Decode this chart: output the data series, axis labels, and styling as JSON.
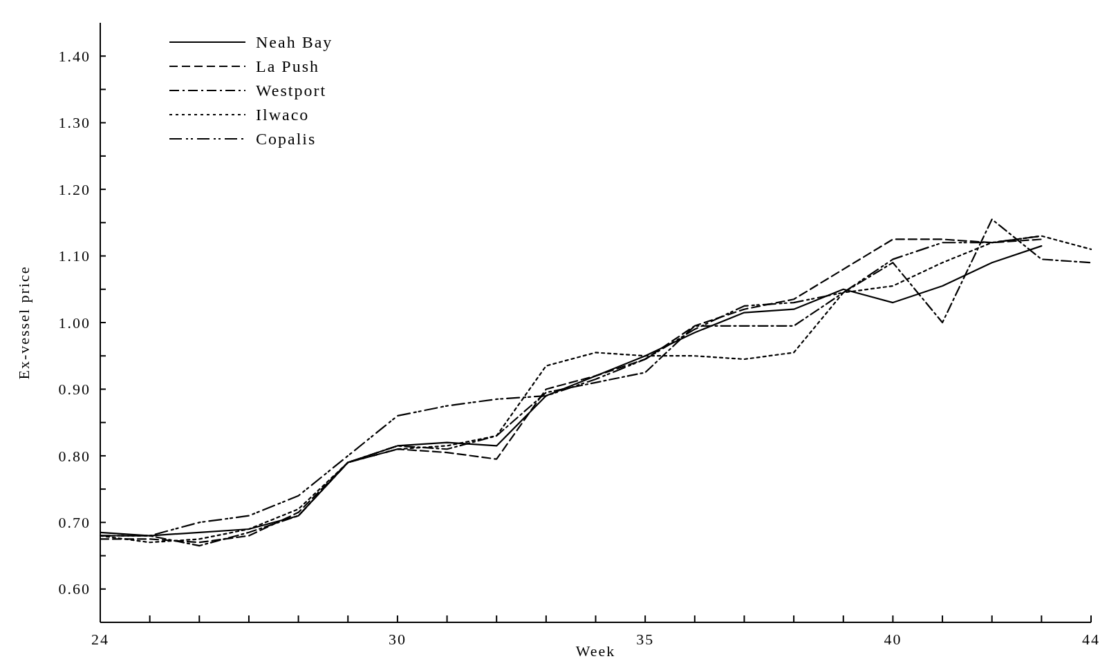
{
  "chart_data": {
    "type": "line",
    "xlabel": "Week",
    "ylabel": "Ex-vessel price",
    "xlim": [
      24,
      44
    ],
    "ylim": [
      0.55,
      1.45
    ],
    "xticks": [
      24,
      {
        "value": 25,
        "label": null
      },
      {
        "value": 26,
        "label": null
      },
      {
        "value": 27,
        "label": null
      },
      {
        "value": 28,
        "label": null
      },
      {
        "value": 29,
        "label": null
      },
      30,
      {
        "value": 31,
        "label": null
      },
      {
        "value": 32,
        "label": null
      },
      {
        "value": 33,
        "label": null
      },
      {
        "value": 34,
        "label": null
      },
      35,
      {
        "value": 36,
        "label": null
      },
      {
        "value": 37,
        "label": null
      },
      {
        "value": 38,
        "label": null
      },
      {
        "value": 39,
        "label": null
      },
      40,
      {
        "value": 41,
        "label": null
      },
      {
        "value": 42,
        "label": null
      },
      {
        "value": 43,
        "label": null
      },
      44
    ],
    "yticks": [
      {
        "value": 0.6,
        "label": "0.60"
      },
      {
        "value": 0.65,
        "label": null
      },
      {
        "value": 0.7,
        "label": "0.70"
      },
      {
        "value": 0.75,
        "label": null
      },
      {
        "value": 0.8,
        "label": "0.80"
      },
      {
        "value": 0.85,
        "label": null
      },
      {
        "value": 0.9,
        "label": "0.90"
      },
      {
        "value": 0.95,
        "label": null
      },
      {
        "value": 1.0,
        "label": "1.00"
      },
      {
        "value": 1.05,
        "label": null
      },
      {
        "value": 1.1,
        "label": "1.10"
      },
      {
        "value": 1.15,
        "label": null
      },
      {
        "value": 1.2,
        "label": "1.20"
      },
      {
        "value": 1.25,
        "label": null
      },
      {
        "value": 1.3,
        "label": "1.30"
      },
      {
        "value": 1.35,
        "label": null
      },
      {
        "value": 1.4,
        "label": "1.40"
      }
    ],
    "legend": "top left",
    "grid": false,
    "series": [
      {
        "name": "Neah Bay",
        "color": "#000000",
        "line_style": "solid",
        "x": [
          24,
          25,
          26,
          27,
          28,
          29,
          30,
          31,
          32,
          33,
          34,
          35,
          36,
          37,
          38,
          39,
          40,
          41,
          42,
          43
        ],
        "values": [
          0.685,
          0.68,
          0.685,
          0.69,
          0.71,
          0.79,
          0.815,
          0.82,
          0.815,
          0.89,
          0.92,
          0.95,
          0.985,
          1.015,
          1.02,
          1.05,
          1.03,
          1.055,
          1.09,
          1.115
        ]
      },
      {
        "name": "La Push",
        "color": "#000000",
        "line_style": "dashed",
        "x": [
          24,
          25,
          26,
          27,
          28,
          29,
          30,
          31,
          32,
          33,
          34,
          35,
          36,
          37,
          38,
          39,
          40,
          41,
          42,
          43
        ],
        "values": [
          0.675,
          0.675,
          0.67,
          0.68,
          0.715,
          0.79,
          0.81,
          0.805,
          0.795,
          0.9,
          0.92,
          0.945,
          0.995,
          1.02,
          1.035,
          1.08,
          1.125,
          1.125,
          1.12,
          1.125
        ]
      },
      {
        "name": "Westport",
        "color": "#000000",
        "line_style": "dashdot",
        "x": [
          24,
          25,
          26,
          27,
          28,
          29,
          30,
          31,
          32,
          33,
          34,
          35,
          36,
          37,
          38,
          39,
          40,
          41,
          42,
          43,
          44
        ],
        "values": [
          0.68,
          0.68,
          0.665,
          0.685,
          0.71,
          0.79,
          0.815,
          0.81,
          0.83,
          0.895,
          0.91,
          0.925,
          0.995,
          0.995,
          0.995,
          1.045,
          1.09,
          1.0,
          1.155,
          1.095,
          1.09
        ]
      },
      {
        "name": "Ilwaco",
        "color": "#000000",
        "line_style": "dotted",
        "x": [
          24,
          25,
          26,
          27,
          28,
          29,
          30,
          31,
          32,
          33,
          34,
          35,
          36,
          37,
          38,
          39,
          40,
          41,
          42,
          43,
          44
        ],
        "values": [
          0.68,
          0.67,
          0.675,
          0.69,
          0.72,
          0.79,
          0.81,
          0.815,
          0.83,
          0.935,
          0.955,
          0.95,
          0.95,
          0.945,
          0.955,
          1.045,
          1.055,
          1.09,
          1.12,
          1.13,
          1.11
        ]
      },
      {
        "name": "Copalis",
        "color": "#000000",
        "line_style": "dashdotdot",
        "x": [
          24,
          25,
          26,
          27,
          28,
          29,
          30,
          31,
          32,
          33,
          34,
          35,
          36,
          37,
          38,
          39,
          40,
          41,
          42,
          43
        ],
        "values": [
          0.68,
          0.68,
          0.7,
          0.71,
          0.74,
          0.8,
          0.86,
          0.875,
          0.885,
          0.89,
          0.915,
          0.945,
          0.99,
          1.025,
          1.03,
          1.045,
          1.095,
          1.12,
          1.12,
          1.13
        ]
      }
    ]
  }
}
